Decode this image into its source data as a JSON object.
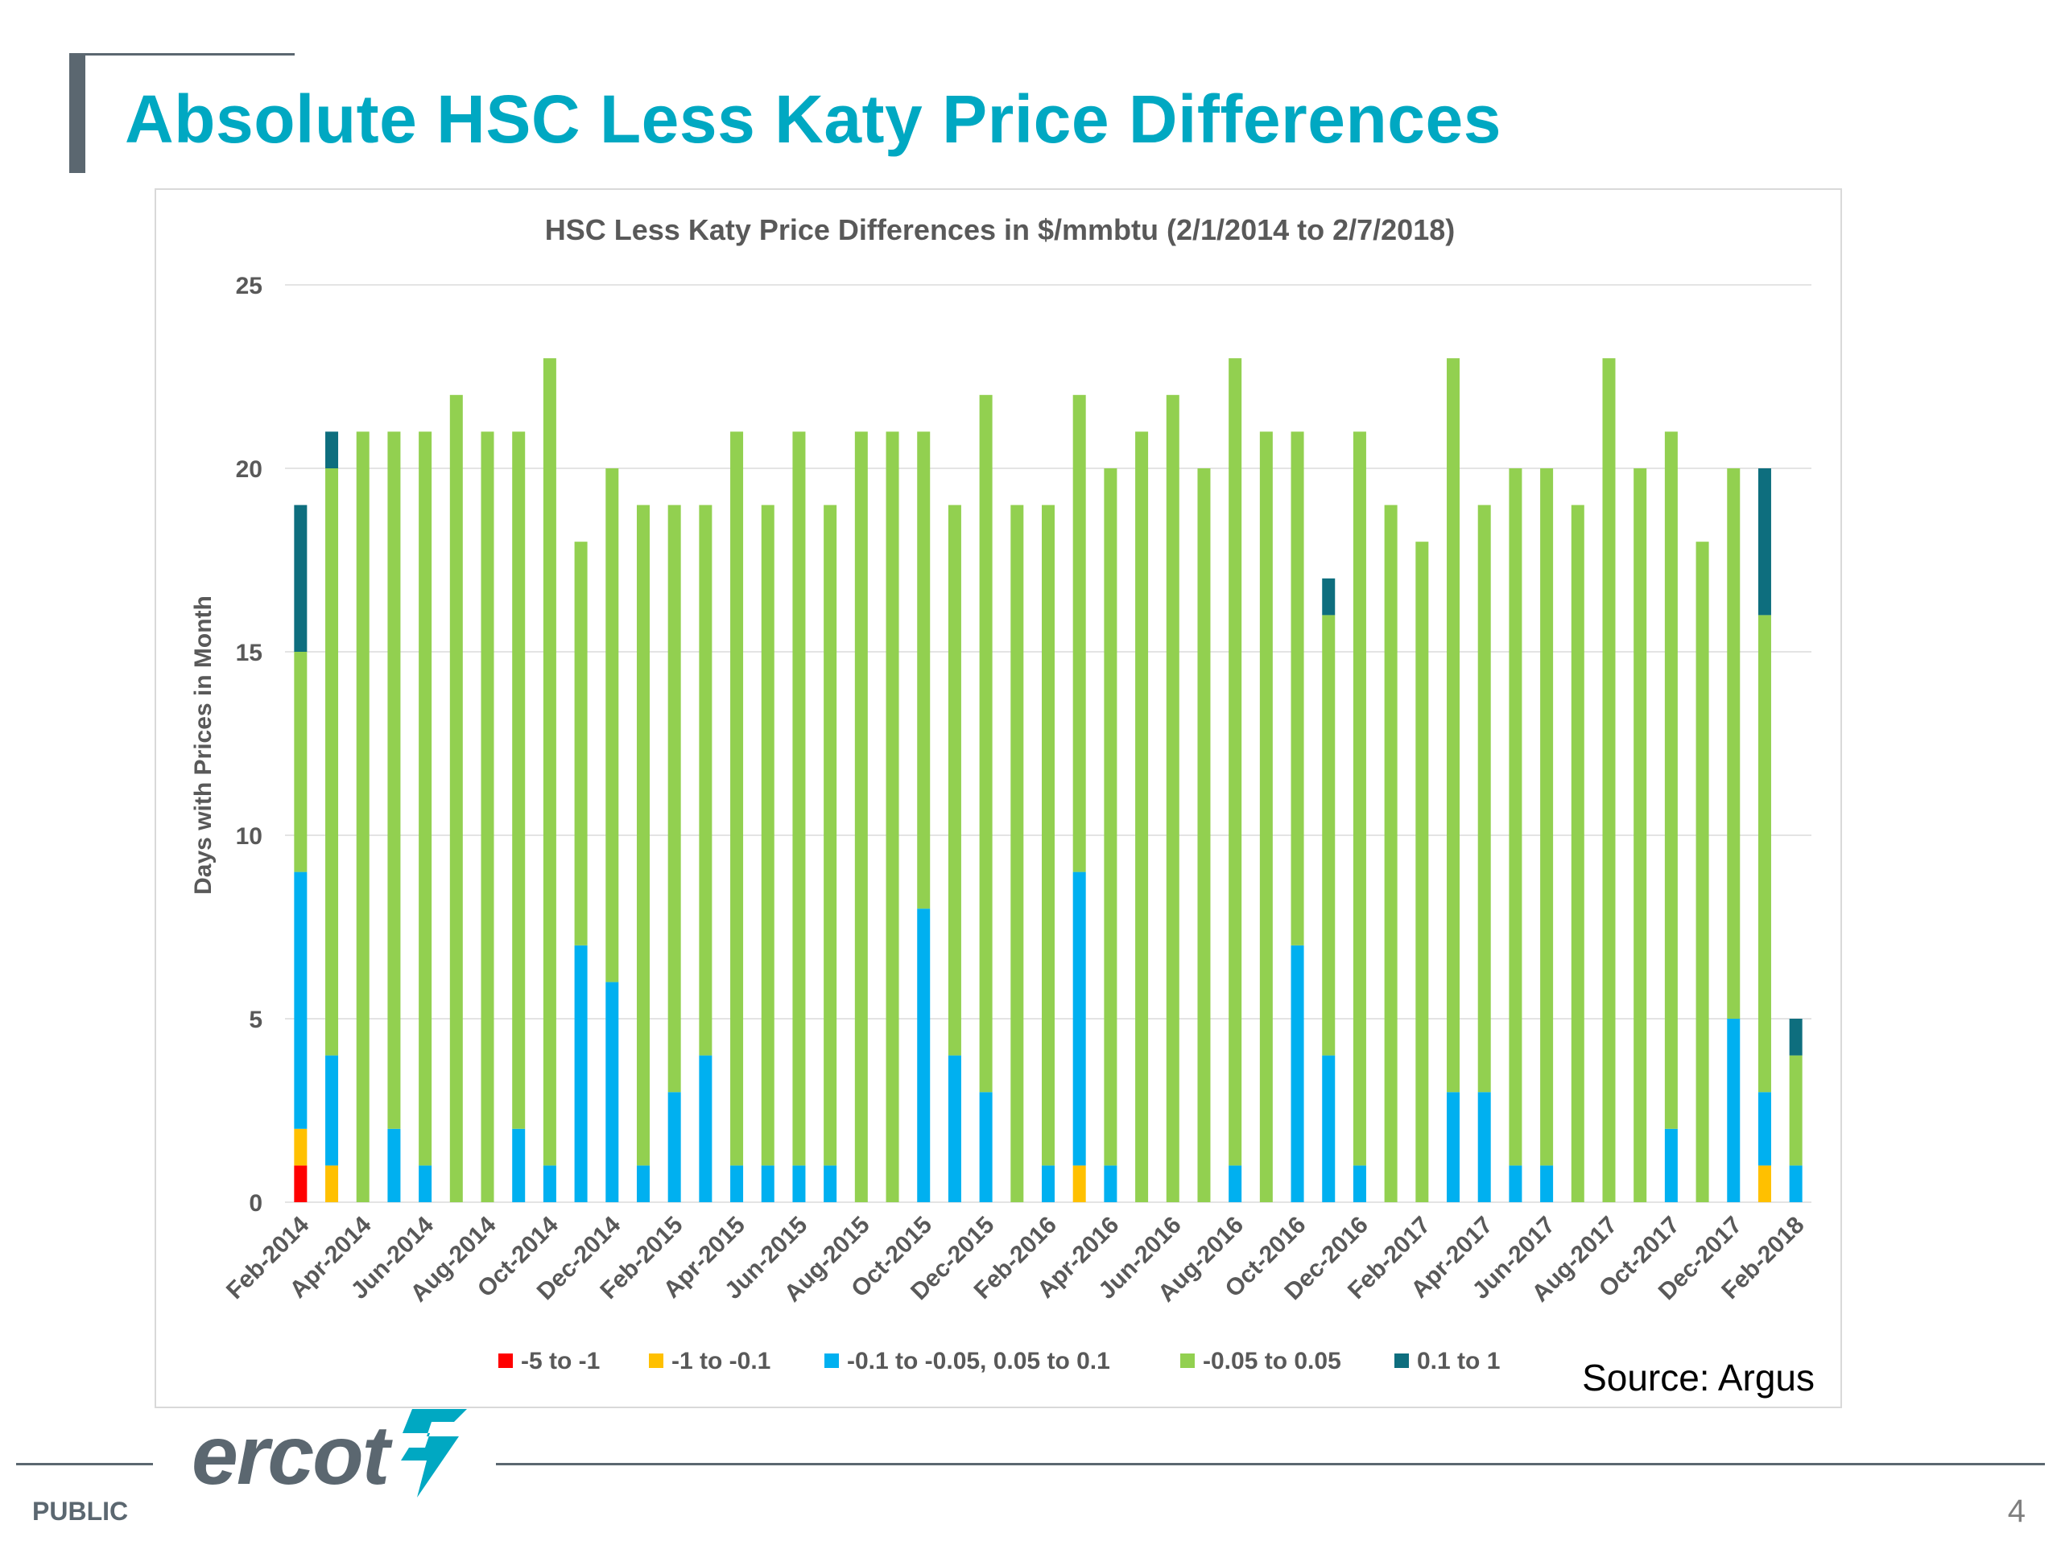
{
  "slide": {
    "title": "Absolute HSC Less Katy Price Differences",
    "footer_label": "PUBLIC",
    "page_number": "4",
    "logo_text": "ercot",
    "source": "Source: Argus"
  },
  "colors": {
    "title": "#00a8c2",
    "accent_bar": "#5b6770"
  },
  "chart_data": {
    "type": "bar",
    "stacked": true,
    "title": "HSC Less Katy Price Differences in $/mmbtu (2/1/2014 to 2/7/2018)",
    "xlabel": "",
    "ylabel": "Days with Prices in Month",
    "ylim": [
      0,
      25
    ],
    "yticks": [
      0,
      5,
      10,
      15,
      20,
      25
    ],
    "grid": true,
    "legend_position": "bottom",
    "categories": [
      "Feb-2014",
      "Mar-2014",
      "Apr-2014",
      "May-2014",
      "Jun-2014",
      "Jul-2014",
      "Aug-2014",
      "Sep-2014",
      "Oct-2014",
      "Nov-2014",
      "Dec-2014",
      "Jan-2015",
      "Feb-2015",
      "Mar-2015",
      "Apr-2015",
      "May-2015",
      "Jun-2015",
      "Jul-2015",
      "Aug-2015",
      "Sep-2015",
      "Oct-2015",
      "Nov-2015",
      "Dec-2015",
      "Jan-2016",
      "Feb-2016",
      "Mar-2016",
      "Apr-2016",
      "May-2016",
      "Jun-2016",
      "Jul-2016",
      "Aug-2016",
      "Sep-2016",
      "Oct-2016",
      "Nov-2016",
      "Dec-2016",
      "Jan-2017",
      "Feb-2017",
      "Mar-2017",
      "Apr-2017",
      "May-2017",
      "Jun-2017",
      "Jul-2017",
      "Aug-2017",
      "Sep-2017",
      "Oct-2017",
      "Nov-2017",
      "Dec-2017",
      "Jan-2018",
      "Feb-2018"
    ],
    "x_tick_labels": [
      "Feb-2014",
      "Apr-2014",
      "Jun-2014",
      "Aug-2014",
      "Oct-2014",
      "Dec-2014",
      "Feb-2015",
      "Apr-2015",
      "Jun-2015",
      "Aug-2015",
      "Oct-2015",
      "Dec-2015",
      "Feb-2016",
      "Apr-2016",
      "Jun-2016",
      "Aug-2016",
      "Oct-2016",
      "Dec-2016",
      "Feb-2017",
      "Apr-2017",
      "Jun-2017",
      "Aug-2017",
      "Oct-2017",
      "Dec-2017",
      "Feb-2018"
    ],
    "series": [
      {
        "name": "-5 to -1",
        "color": "#ff0000",
        "values": [
          1,
          0,
          0,
          0,
          0,
          0,
          0,
          0,
          0,
          0,
          0,
          0,
          0,
          0,
          0,
          0,
          0,
          0,
          0,
          0,
          0,
          0,
          0,
          0,
          0,
          0,
          0,
          0,
          0,
          0,
          0,
          0,
          0,
          0,
          0,
          0,
          0,
          0,
          0,
          0,
          0,
          0,
          0,
          0,
          0,
          0,
          0,
          0,
          0
        ]
      },
      {
        "name": "-1 to -0.1",
        "color": "#ffc000",
        "values": [
          1,
          1,
          0,
          0,
          0,
          0,
          0,
          0,
          0,
          0,
          0,
          0,
          0,
          0,
          0,
          0,
          0,
          0,
          0,
          0,
          0,
          0,
          0,
          0,
          0,
          1,
          0,
          0,
          0,
          0,
          0,
          0,
          0,
          0,
          0,
          0,
          0,
          0,
          0,
          0,
          0,
          0,
          0,
          0,
          0,
          0,
          0,
          1,
          0
        ]
      },
      {
        "name": "-0.1 to -0.05, 0.05 to 0.1",
        "color": "#00b0f0",
        "values": [
          7,
          3,
          0,
          2,
          1,
          0,
          0,
          2,
          1,
          7,
          6,
          1,
          3,
          4,
          1,
          1,
          1,
          1,
          0,
          0,
          8,
          4,
          3,
          0,
          1,
          8,
          1,
          0,
          0,
          0,
          1,
          0,
          7,
          4,
          1,
          0,
          0,
          3,
          3,
          1,
          1,
          0,
          0,
          0,
          2,
          0,
          5,
          2,
          1
        ]
      },
      {
        "name": "-0.05 to 0.05",
        "color": "#92d050",
        "values": [
          6,
          16,
          21,
          19,
          20,
          22,
          21,
          19,
          22,
          11,
          14,
          18,
          16,
          15,
          20,
          18,
          20,
          18,
          21,
          21,
          13,
          15,
          19,
          19,
          18,
          13,
          19,
          21,
          22,
          20,
          22,
          21,
          14,
          12,
          20,
          19,
          18,
          20,
          16,
          19,
          19,
          19,
          23,
          20,
          19,
          18,
          15,
          13,
          3
        ]
      },
      {
        "name": "0.1 to 1",
        "color": "#0e6e7e",
        "values": [
          4,
          1,
          0,
          0,
          0,
          0,
          0,
          0,
          0,
          0,
          0,
          0,
          0,
          0,
          0,
          0,
          0,
          0,
          0,
          0,
          0,
          0,
          0,
          0,
          0,
          0,
          0,
          0,
          0,
          0,
          0,
          0,
          0,
          1,
          0,
          0,
          0,
          0,
          0,
          0,
          0,
          0,
          0,
          0,
          0,
          0,
          0,
          4,
          1
        ]
      }
    ]
  }
}
